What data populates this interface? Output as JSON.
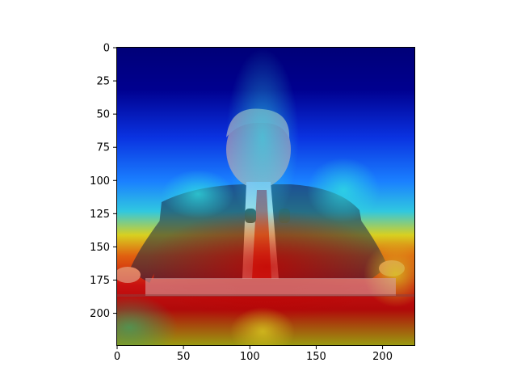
{
  "chart_data": {
    "type": "heatmap",
    "title": "",
    "xlabel": "",
    "ylabel": "",
    "image_content": "photograph of a man in a suit speaking at a podium with microphones, overlaid with a jet-colormap attention heatmap",
    "colormap": "jet",
    "grid": false,
    "xlim": [
      0,
      224
    ],
    "ylim": [
      224,
      0
    ],
    "x_ticks": [
      0,
      50,
      100,
      150,
      200
    ],
    "y_ticks": [
      0,
      25,
      50,
      75,
      100,
      125,
      150,
      175,
      200
    ],
    "colors": {
      "background": "#ffffff",
      "axis": "#000000",
      "heat_low": "#00008f",
      "heat_mid": "#00d0ff",
      "heat_high": "#c80000",
      "suit": "#1c2540",
      "skin": "#e8c2a8",
      "hair": "#e6dcc0",
      "tie": "#e03030",
      "podium": "#d7a0a0"
    }
  }
}
